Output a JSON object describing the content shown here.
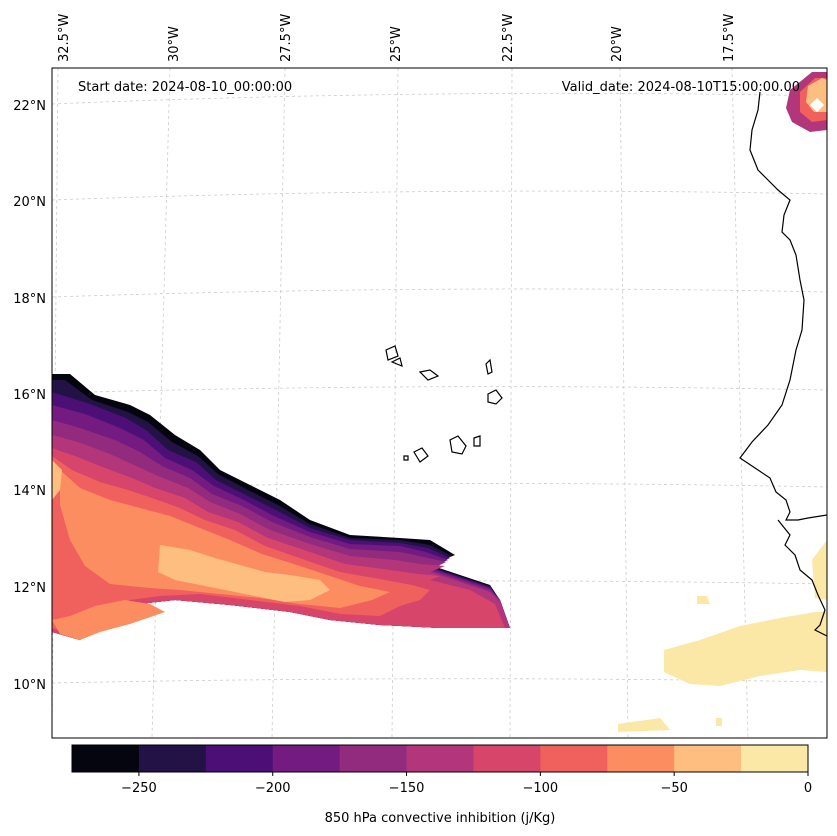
{
  "header": {
    "start_date": "Start date: 2024-08-10_00:00:00",
    "valid_date": "Valid_date: 2024-08-10T15:00:00.00"
  },
  "axes": {
    "lon_labels": [
      "32.5°W",
      "30°W",
      "27.5°W",
      "25°W",
      "22.5°W",
      "20°W",
      "17.5°W"
    ],
    "lat_labels": [
      "22°N",
      "20°N",
      "18°N",
      "16°N",
      "14°N",
      "12°N",
      "10°N"
    ]
  },
  "colorbar": {
    "label": "850 hPa convective inhibition (j/Kg)",
    "ticks": [
      "−250",
      "−200",
      "−150",
      "−100",
      "−50",
      "0"
    ],
    "levels": [
      -275,
      -250,
      -225,
      -200,
      -175,
      -150,
      -125,
      -100,
      -75,
      -50,
      -25,
      0
    ],
    "colors": [
      "#05050f",
      "#221246",
      "#4c0f76",
      "#731b80",
      "#922b7e",
      "#b4367a",
      "#d7456b",
      "#f0605d",
      "#fc8d60",
      "#febe80",
      "#fce8a6"
    ]
  },
  "colors": {
    "coastline": "#000000",
    "grid": "#cccccc"
  }
}
